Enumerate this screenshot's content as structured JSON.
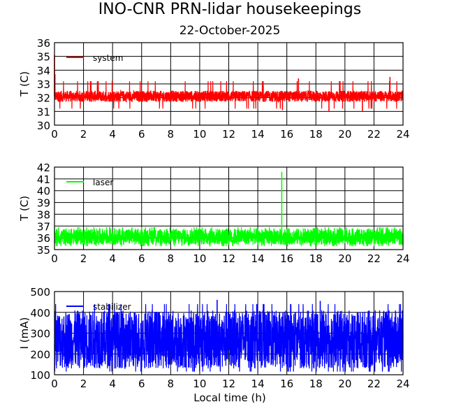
{
  "title": "INO-CNR PRN-lidar housekeepings",
  "subtitle": "22-October-2025",
  "xlabel": "Local time (h)",
  "chart_data": [
    {
      "type": "line",
      "ylabel": "T (C)",
      "xlim": [
        0,
        24
      ],
      "ylim": [
        30,
        36
      ],
      "xticks": [
        "0",
        "2",
        "4",
        "6",
        "8",
        "10",
        "12",
        "14",
        "16",
        "18",
        "20",
        "22",
        "24"
      ],
      "yticks": [
        "30",
        "31",
        "32",
        "33",
        "34",
        "35",
        "36"
      ],
      "grid": true,
      "legend_position": "top-left",
      "series": [
        {
          "name": "system",
          "color": "#ff0000",
          "noise": {
            "low": 31.7,
            "high": 32.5,
            "spike_high": 33.2,
            "spike_low": 31.2
          },
          "points": [
            [
              0,
              35.1
            ],
            [
              0.03,
              33.7
            ],
            [
              0.06,
              32.3
            ],
            [
              15.7,
              31.1
            ],
            [
              16.8,
              33.4
            ],
            [
              18.9,
              31.0
            ],
            [
              21.2,
              31.0
            ],
            [
              23.1,
              33.5
            ]
          ]
        }
      ]
    },
    {
      "type": "line",
      "ylabel": "T (C)",
      "xlim": [
        0,
        24
      ],
      "ylim": [
        35,
        42
      ],
      "xticks": [
        "0",
        "2",
        "4",
        "6",
        "8",
        "10",
        "12",
        "14",
        "16",
        "18",
        "20",
        "22",
        "24"
      ],
      "yticks": [
        "35",
        "36",
        "37",
        "38",
        "39",
        "40",
        "41",
        "42"
      ],
      "grid": true,
      "legend_position": "top-left",
      "series": [
        {
          "name": "laser",
          "color": "#00ff00",
          "noise": {
            "low": 35.4,
            "high": 36.8,
            "spike_high": 36.9,
            "spike_low": 35.3
          },
          "points": [
            [
              15.6,
              36.3
            ],
            [
              15.65,
              41.6
            ],
            [
              15.7,
              36.2
            ]
          ]
        }
      ]
    },
    {
      "type": "line",
      "ylabel": "I (mA)",
      "xlim": [
        0,
        24
      ],
      "ylim": [
        100,
        500
      ],
      "xticks": [
        "0",
        "2",
        "4",
        "6",
        "8",
        "10",
        "12",
        "14",
        "16",
        "18",
        "20",
        "22",
        "24"
      ],
      "yticks": [
        "100",
        "200",
        "300",
        "400",
        "500"
      ],
      "grid": true,
      "legend_position": "top-left",
      "series": [
        {
          "name": "stabilizer",
          "color": "#0000ff",
          "noise": {
            "low": 130,
            "high": 410,
            "spike_high": 440,
            "spike_low": 115
          },
          "points": [
            [
              11.2,
              460
            ],
            [
              18.3,
              455
            ],
            [
              3.8,
              440
            ],
            [
              23.0,
              115
            ]
          ]
        }
      ]
    }
  ]
}
